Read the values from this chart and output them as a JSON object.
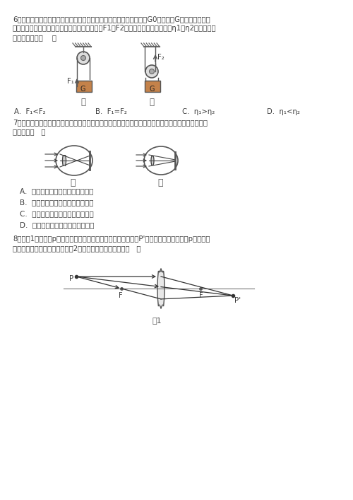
{
  "bg_color": "#ffffff",
  "text_color": "#3a3a3a",
  "fig_width": 5.0,
  "fig_height": 7.07,
  "q6_lines": [
    "6、如图所示，分别用定滑轮和动滑轮（不计绳重与摩擦，且动滑轮重G0小于物重G）将重力相同的",
    "两个物体匀速提升相同的高度，所用拉力分别为F1、F2，它们的机械效率分别为η1、η2，则下列关",
    "系式正确的是（    ）"
  ],
  "q6_opts": [
    "A.  F₁<F₂",
    "B.  F₁=F₂",
    "C.  η₁>η₂",
    "D.  η₁<η₂"
  ],
  "q7_lines": [
    "7、人眼的晶状体和角膜的共同作用相当于凸透镜，如图中关于近视眼与远视眼的成因及矫正的说法中",
    "正确的是（   ）"
  ],
  "q7_opts": [
    "A.  甲为近视眼，可佩戴凹透镜矫正",
    "B.  甲为远视眼，可佩戴凸透镜矫正",
    "C.  乙为近视眼，可佩戴凸透镜矫正",
    "D.  乙为近视眼，可佩戴凹透镜矫正"
  ],
  "q8_lines": [
    "8、如图1所示，从p点发出的三条特殊光线经过凸透镜后会聚于P'点，现有一条光线也从p点发出，",
    "经过凸透镜后的传播路径，在图2的四种表示中，正确的是（   ）"
  ],
  "label_jia": "甲",
  "label_yi": "乙",
  "fig1_label": "图1",
  "F1_label": "F₁",
  "F2_label": "F₂",
  "G_label": "G",
  "P_label": "P",
  "Pp_label": "P'",
  "F_label": "F"
}
